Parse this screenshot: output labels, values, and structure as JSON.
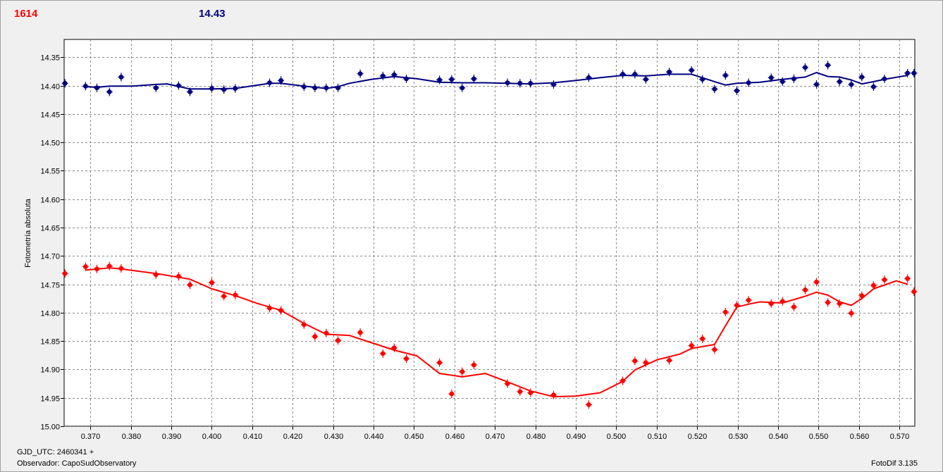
{
  "header": {
    "left_value": "1614",
    "right_value": "14.43"
  },
  "footer": {
    "gjd": "GJD_UTC: 2460341 +",
    "observer": "Observador: CapoSudObservatory",
    "version": "FotoDif 3.135"
  },
  "chart_data": {
    "type": "scatter",
    "ylabel": "Fotometría absoluta",
    "xlabel": "",
    "xlim": [
      0.3635,
      0.5738
    ],
    "ylim": [
      15.0,
      14.3187
    ],
    "y_inverted": true,
    "grid": true,
    "x_ticks": [
      "0.370",
      "0.380",
      "0.390",
      "0.400",
      "0.410",
      "0.420",
      "0.430",
      "0.440",
      "0.450",
      "0.460",
      "0.470",
      "0.480",
      "0.490",
      "0.500",
      "0.510",
      "0.520",
      "0.530",
      "0.540",
      "0.550",
      "0.560",
      "0.570"
    ],
    "y_ticks": [
      "14.35",
      "14.40",
      "14.45",
      "14.50",
      "14.55",
      "14.60",
      "14.65",
      "14.70",
      "14.75",
      "14.80",
      "14.85",
      "14.90",
      "14.95",
      "15.00"
    ],
    "series": [
      {
        "color": "#ff0000",
        "points": [
          [
            0.3637,
            14.731
          ],
          [
            0.3688,
            14.719
          ],
          [
            0.3716,
            14.723
          ],
          [
            0.3747,
            14.718
          ],
          [
            0.3776,
            14.722
          ],
          [
            0.3862,
            14.733
          ],
          [
            0.3918,
            14.736
          ],
          [
            0.3946,
            14.751
          ],
          [
            0.4,
            14.747
          ],
          [
            0.403,
            14.771
          ],
          [
            0.4058,
            14.769
          ],
          [
            0.4143,
            14.792
          ],
          [
            0.4171,
            14.796
          ],
          [
            0.4228,
            14.821
          ],
          [
            0.4255,
            14.842
          ],
          [
            0.4283,
            14.836
          ],
          [
            0.4312,
            14.849
          ],
          [
            0.4367,
            14.835
          ],
          [
            0.4423,
            14.872
          ],
          [
            0.4451,
            14.862
          ],
          [
            0.4481,
            14.881
          ],
          [
            0.4563,
            14.888
          ],
          [
            0.4593,
            14.943
          ],
          [
            0.4619,
            14.904
          ],
          [
            0.4648,
            14.892
          ],
          [
            0.4731,
            14.925
          ],
          [
            0.4762,
            14.939
          ],
          [
            0.4788,
            14.941
          ],
          [
            0.4845,
            14.945
          ],
          [
            0.4932,
            14.962
          ],
          [
            0.5016,
            14.92
          ],
          [
            0.5046,
            14.885
          ],
          [
            0.5073,
            14.888
          ],
          [
            0.5131,
            14.884
          ],
          [
            0.5186,
            14.858
          ],
          [
            0.5213,
            14.846
          ],
          [
            0.5243,
            14.865
          ],
          [
            0.527,
            14.799
          ],
          [
            0.5298,
            14.787
          ],
          [
            0.5327,
            14.778
          ],
          [
            0.5383,
            14.784
          ],
          [
            0.5411,
            14.78
          ],
          [
            0.5439,
            14.79
          ],
          [
            0.5467,
            14.76
          ],
          [
            0.5495,
            14.746
          ],
          [
            0.5523,
            14.782
          ],
          [
            0.5552,
            14.784
          ],
          [
            0.5581,
            14.801
          ],
          [
            0.5607,
            14.77
          ],
          [
            0.5636,
            14.752
          ],
          [
            0.5663,
            14.742
          ],
          [
            0.572,
            14.74
          ],
          [
            0.5736,
            14.763
          ]
        ],
        "trend": [
          [
            0.3688,
            14.725
          ],
          [
            0.3747,
            14.721
          ],
          [
            0.3776,
            14.723
          ],
          [
            0.3862,
            14.731
          ],
          [
            0.3946,
            14.741
          ],
          [
            0.4,
            14.758
          ],
          [
            0.4058,
            14.77
          ],
          [
            0.4114,
            14.784
          ],
          [
            0.4171,
            14.796
          ],
          [
            0.4228,
            14.819
          ],
          [
            0.4283,
            14.838
          ],
          [
            0.434,
            14.84
          ],
          [
            0.4395,
            14.853
          ],
          [
            0.4451,
            14.866
          ],
          [
            0.4507,
            14.876
          ],
          [
            0.4563,
            14.907
          ],
          [
            0.4619,
            14.913
          ],
          [
            0.4676,
            14.907
          ],
          [
            0.4731,
            14.922
          ],
          [
            0.4788,
            14.938
          ],
          [
            0.4845,
            14.948
          ],
          [
            0.49,
            14.947
          ],
          [
            0.496,
            14.941
          ],
          [
            0.5016,
            14.921
          ],
          [
            0.5046,
            14.901
          ],
          [
            0.5101,
            14.883
          ],
          [
            0.5157,
            14.873
          ],
          [
            0.5186,
            14.863
          ],
          [
            0.5243,
            14.856
          ],
          [
            0.527,
            14.823
          ],
          [
            0.5298,
            14.79
          ],
          [
            0.5327,
            14.785
          ],
          [
            0.5355,
            14.781
          ],
          [
            0.5411,
            14.783
          ],
          [
            0.5467,
            14.771
          ],
          [
            0.5495,
            14.764
          ],
          [
            0.5523,
            14.769
          ],
          [
            0.5552,
            14.781
          ],
          [
            0.5581,
            14.787
          ],
          [
            0.5607,
            14.775
          ],
          [
            0.5636,
            14.758
          ],
          [
            0.5692,
            14.744
          ],
          [
            0.572,
            14.75
          ]
        ]
      },
      {
        "color": "#000080",
        "points": [
          [
            0.3637,
            14.396
          ],
          [
            0.3688,
            14.401
          ],
          [
            0.3716,
            14.404
          ],
          [
            0.3747,
            14.411
          ],
          [
            0.3776,
            14.385
          ],
          [
            0.3862,
            14.404
          ],
          [
            0.3918,
            14.4
          ],
          [
            0.3946,
            14.411
          ],
          [
            0.4,
            14.405
          ],
          [
            0.403,
            14.407
          ],
          [
            0.4058,
            14.405
          ],
          [
            0.4143,
            14.395
          ],
          [
            0.4171,
            14.391
          ],
          [
            0.4228,
            14.402
          ],
          [
            0.4255,
            14.404
          ],
          [
            0.4283,
            14.404
          ],
          [
            0.4312,
            14.404
          ],
          [
            0.4367,
            14.379
          ],
          [
            0.4423,
            14.383
          ],
          [
            0.4451,
            14.381
          ],
          [
            0.4481,
            14.388
          ],
          [
            0.4563,
            14.39
          ],
          [
            0.4593,
            14.389
          ],
          [
            0.4619,
            14.404
          ],
          [
            0.4648,
            14.388
          ],
          [
            0.4731,
            14.395
          ],
          [
            0.4762,
            14.396
          ],
          [
            0.4788,
            14.396
          ],
          [
            0.4845,
            14.398
          ],
          [
            0.4932,
            14.386
          ],
          [
            0.5016,
            14.38
          ],
          [
            0.5046,
            14.38
          ],
          [
            0.5073,
            14.389
          ],
          [
            0.5131,
            14.376
          ],
          [
            0.5186,
            14.373
          ],
          [
            0.5213,
            14.389
          ],
          [
            0.5243,
            14.406
          ],
          [
            0.527,
            14.382
          ],
          [
            0.5298,
            14.409
          ],
          [
            0.5327,
            14.395
          ],
          [
            0.5383,
            14.386
          ],
          [
            0.5411,
            14.393
          ],
          [
            0.5439,
            14.388
          ],
          [
            0.5467,
            14.368
          ],
          [
            0.5495,
            14.398
          ],
          [
            0.5523,
            14.364
          ],
          [
            0.5552,
            14.393
          ],
          [
            0.5581,
            14.398
          ],
          [
            0.5607,
            14.385
          ],
          [
            0.5636,
            14.402
          ],
          [
            0.5663,
            14.388
          ],
          [
            0.572,
            14.378
          ],
          [
            0.5736,
            14.378
          ]
        ],
        "trend": [
          [
            0.3688,
            14.402
          ],
          [
            0.3716,
            14.403
          ],
          [
            0.3747,
            14.401
          ],
          [
            0.3803,
            14.401
          ],
          [
            0.3862,
            14.398
          ],
          [
            0.389,
            14.397
          ],
          [
            0.3946,
            14.406
          ],
          [
            0.4,
            14.406
          ],
          [
            0.4058,
            14.405
          ],
          [
            0.4114,
            14.399
          ],
          [
            0.4143,
            14.396
          ],
          [
            0.4171,
            14.396
          ],
          [
            0.4228,
            14.401
          ],
          [
            0.4283,
            14.405
          ],
          [
            0.4312,
            14.402
          ],
          [
            0.434,
            14.396
          ],
          [
            0.4395,
            14.389
          ],
          [
            0.4451,
            14.384
          ],
          [
            0.4507,
            14.388
          ],
          [
            0.4563,
            14.394
          ],
          [
            0.4619,
            14.395
          ],
          [
            0.4676,
            14.395
          ],
          [
            0.4731,
            14.396
          ],
          [
            0.4788,
            14.397
          ],
          [
            0.4845,
            14.395
          ],
          [
            0.49,
            14.391
          ],
          [
            0.496,
            14.386
          ],
          [
            0.5016,
            14.382
          ],
          [
            0.5073,
            14.383
          ],
          [
            0.5131,
            14.38
          ],
          [
            0.5186,
            14.38
          ],
          [
            0.5243,
            14.393
          ],
          [
            0.527,
            14.399
          ],
          [
            0.5298,
            14.396
          ],
          [
            0.5355,
            14.394
          ],
          [
            0.5411,
            14.389
          ],
          [
            0.5439,
            14.387
          ],
          [
            0.5467,
            14.385
          ],
          [
            0.5495,
            14.377
          ],
          [
            0.5523,
            14.384
          ],
          [
            0.5552,
            14.385
          ],
          [
            0.5581,
            14.39
          ],
          [
            0.5607,
            14.397
          ],
          [
            0.5636,
            14.393
          ],
          [
            0.5663,
            14.389
          ],
          [
            0.572,
            14.382
          ]
        ]
      }
    ]
  }
}
